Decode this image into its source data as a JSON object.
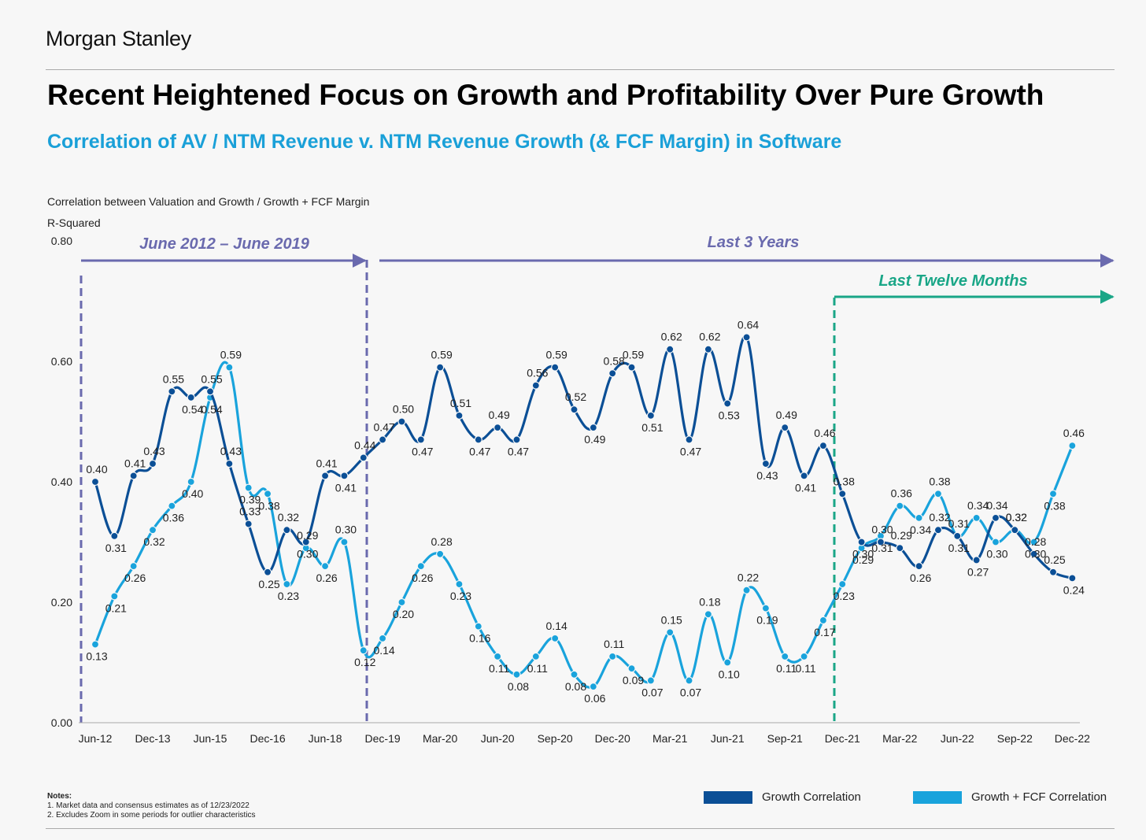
{
  "brand": "Morgan Stanley",
  "title": "Recent Heightened Focus on Growth and Profitability Over Pure Growth",
  "subtitle": "Correlation of AV / NTM Revenue v. NTM Revenue Growth (& FCF Margin) in Software",
  "chart_header": "Correlation between Valuation and Growth / Growth + FCF Margin",
  "notes": {
    "heading": "Notes:",
    "items": [
      "1.  Market data and consensus estimates as of 12/23/2022",
      "2.  Excludes Zoom in some periods for outlier characteristics"
    ]
  },
  "colors": {
    "growth": "#0b4f96",
    "growth_fcf": "#19a3dc",
    "period": "#6a6aae",
    "ltm": "#1aa687"
  },
  "chart_data": {
    "type": "line",
    "ylabel": "R-Squared",
    "ylim": [
      0,
      0.8
    ],
    "yticks": [
      "0.00",
      "0.20",
      "0.40",
      "0.60",
      "0.80"
    ],
    "grid": false,
    "legend": "bottom-right",
    "x_tick_labels": [
      "Jun-12",
      "Dec-13",
      "Jun-15",
      "Dec-16",
      "Jun-18",
      "Dec-19",
      "Mar-20",
      "Jun-20",
      "Sep-20",
      "Dec-20",
      "Mar-21",
      "Jun-21",
      "Sep-21",
      "Dec-21",
      "Mar-22",
      "Jun-22",
      "Sep-22",
      "Dec-22"
    ],
    "periods": [
      {
        "label": "June 2012 – June 2019"
      },
      {
        "label": "Last 3 Years"
      },
      {
        "label": "Last Twelve Months"
      }
    ],
    "series": [
      {
        "name": "Growth Correlation",
        "values": [
          0.4,
          0.31,
          0.41,
          0.43,
          0.55,
          0.54,
          0.55,
          0.43,
          0.33,
          0.25,
          0.32,
          0.3,
          0.41,
          0.41,
          0.44,
          0.47,
          0.5,
          0.47,
          0.59,
          0.51,
          0.47,
          0.49,
          0.47,
          0.56,
          0.59,
          0.52,
          0.49,
          0.58,
          0.59,
          0.51,
          0.62,
          0.47,
          0.62,
          0.53,
          0.64,
          0.43,
          0.49,
          0.41,
          0.46,
          0.38,
          0.3,
          0.3,
          0.29,
          0.26,
          0.32,
          0.31,
          0.27,
          0.34,
          0.32,
          0.28,
          0.25,
          0.24
        ]
      },
      {
        "name": "Growth + FCF Correlation",
        "values": [
          0.13,
          0.21,
          0.26,
          0.32,
          0.36,
          0.4,
          0.54,
          0.59,
          0.39,
          0.38,
          0.23,
          0.29,
          0.26,
          0.3,
          0.12,
          0.14,
          0.2,
          0.26,
          0.28,
          0.23,
          0.16,
          0.11,
          0.08,
          0.11,
          0.14,
          0.08,
          0.06,
          0.11,
          0.09,
          0.07,
          0.15,
          0.07,
          0.18,
          0.1,
          0.22,
          0.19,
          0.11,
          0.11,
          0.17,
          0.23,
          0.29,
          0.31,
          0.36,
          0.34,
          0.38,
          0.31,
          0.34,
          0.3,
          0.32,
          0.3,
          0.38,
          0.46
        ]
      }
    ]
  }
}
